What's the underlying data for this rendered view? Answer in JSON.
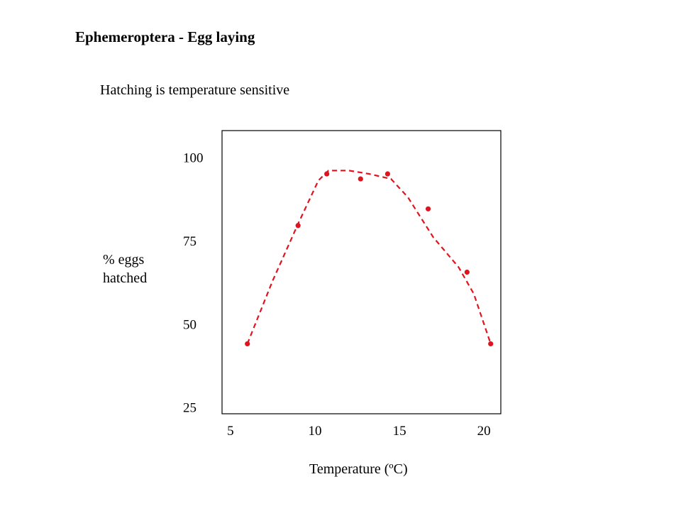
{
  "slide": {
    "title": "Ephemeroptera - Egg laying",
    "subtitle": "Hatching is temperature sensitive"
  },
  "chart_data": {
    "type": "scatter",
    "title": "",
    "xlabel": "Temperature (ºC)",
    "ylabel_lines": [
      "% eggs",
      "hatched"
    ],
    "xlim": [
      4.5,
      21
    ],
    "ylim": [
      23,
      108
    ],
    "xticks": [
      5,
      10,
      15,
      20
    ],
    "yticks": [
      25,
      50,
      75,
      100
    ],
    "grid": false,
    "legend": "none",
    "color": "#e0141e",
    "series": [
      {
        "x": [
          6,
          9,
          10.7,
          12.7,
          14.3,
          16.7,
          19,
          20.4
        ],
        "y": [
          44,
          79.5,
          95,
          93.5,
          95,
          84.5,
          65.5,
          44
        ],
        "style": "points"
      },
      {
        "x": [
          6,
          7.5,
          9,
          10.2,
          10.8,
          12,
          13.2,
          14.5,
          15.5,
          17,
          18.5,
          19.4,
          20.4
        ],
        "y": [
          44,
          63,
          80,
          93,
          96,
          96,
          95,
          93.5,
          88,
          76,
          67,
          59,
          44
        ],
        "style": "dashed-fit"
      }
    ]
  }
}
